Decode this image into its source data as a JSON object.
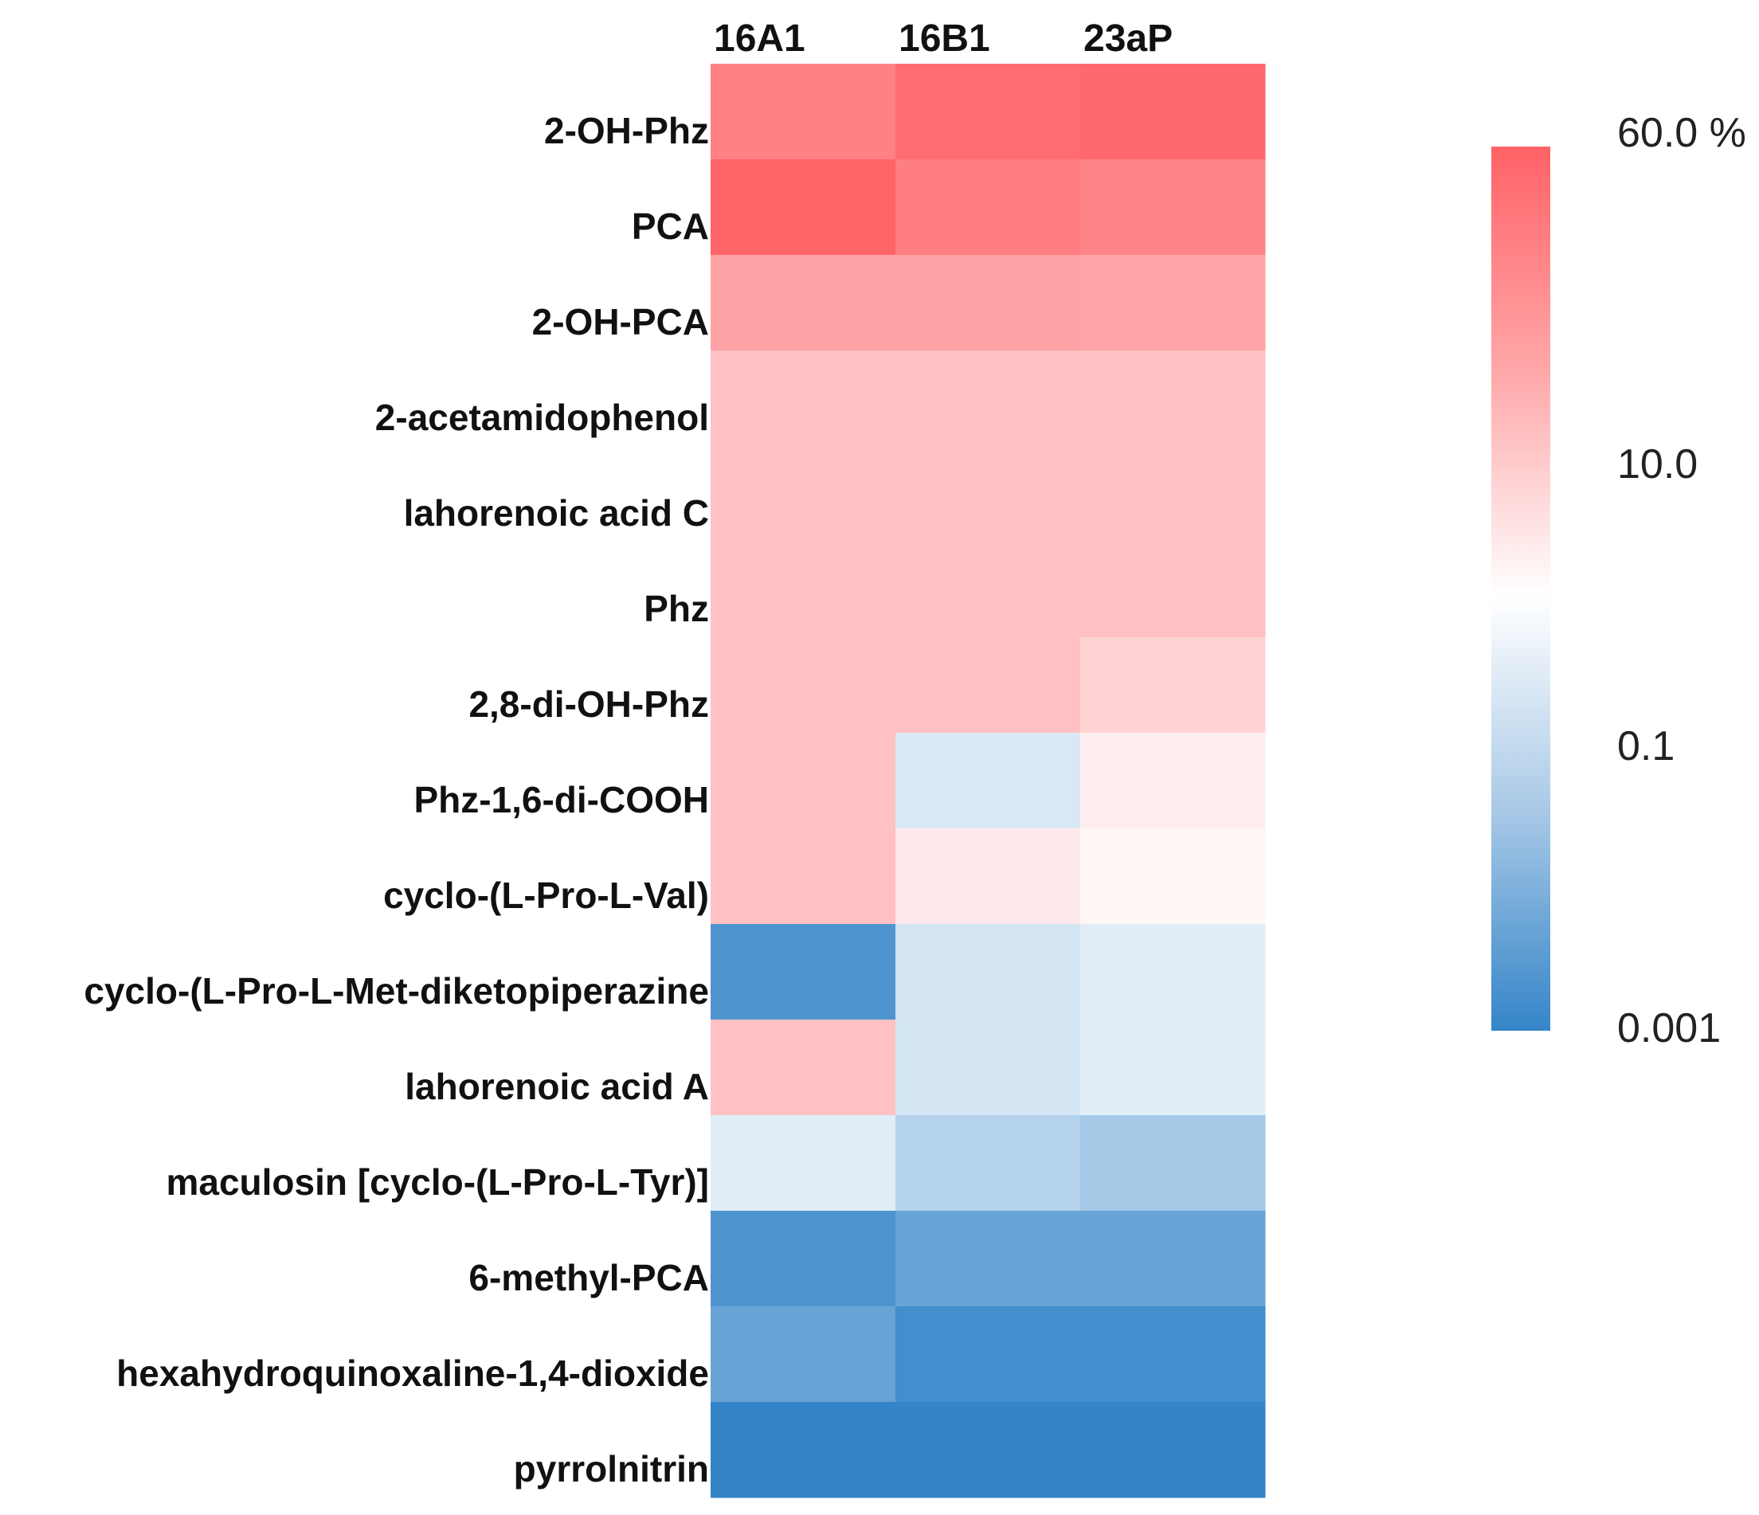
{
  "chart_data": {
    "type": "heatmap",
    "columns": [
      "16A1",
      "16B1",
      "23aP"
    ],
    "rows": [
      "2-OH-Phz",
      "PCA",
      "2-OH-PCA",
      "2-acetamidophenol",
      "lahorenoic acid C",
      "Phz",
      "2,8-di-OH-Phz",
      "Phz-1,6-di-COOH",
      "cyclo-(L-Pro-L-Val)",
      "cyclo-(L-Pro-L-Met-diketopiperazine",
      "lahorenoic acid A",
      "maculosin [cyclo-(L-Pro-L-Tyr)]",
      "6-methyl-PCA",
      "hexahydroquinoxaline-1,4-dioxide",
      "pyrrolnitrin"
    ],
    "values": [
      [
        20,
        40,
        48
      ],
      [
        55,
        22,
        18
      ],
      [
        6,
        6,
        5.5
      ],
      [
        2,
        2,
        2
      ],
      [
        2,
        2,
        2
      ],
      [
        2,
        2,
        2
      ],
      [
        2,
        2,
        1.1
      ],
      [
        2,
        0.08,
        0.4
      ],
      [
        2,
        0.5,
        0.3
      ],
      [
        0.002,
        0.07,
        0.1
      ],
      [
        2,
        0.07,
        0.1
      ],
      [
        0.1,
        0.03,
        0.02
      ],
      [
        0.002,
        0.004,
        0.004
      ],
      [
        0.004,
        0.0015,
        0.0015
      ],
      [
        0.001,
        0.001,
        0.001
      ]
    ],
    "scale": "log",
    "colorbar": {
      "ticks": [
        {
          "value": 60,
          "label": "60.0 %"
        },
        {
          "value": 10,
          "label": "10.0"
        },
        {
          "value": 0.1,
          "label": "0.1"
        },
        {
          "value": 0.001,
          "label": "0.001"
        }
      ],
      "min": 0.001,
      "max": 60,
      "colors": {
        "high": "#ff6266",
        "mid": "#ffffff",
        "low": "#3485c8"
      }
    },
    "legend_position": "right"
  }
}
